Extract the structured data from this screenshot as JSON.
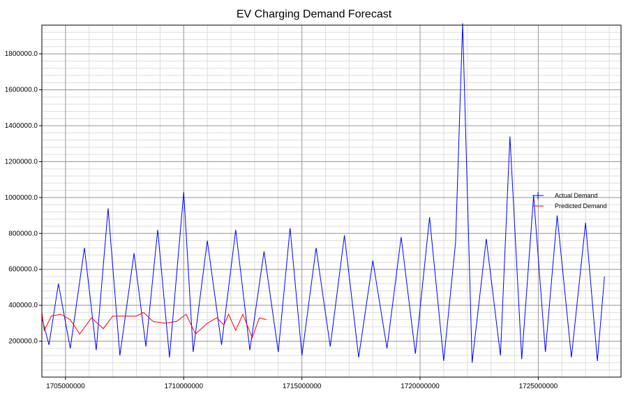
{
  "chart_data": {
    "type": "line",
    "title": "EV Charging Demand Forecast",
    "xlabel": "",
    "ylabel": "",
    "xlim": [
      1704000000,
      1728500000
    ],
    "ylim": [
      0,
      1960000
    ],
    "x_ticks": [
      1705000000,
      1710000000,
      1715000000,
      1720000000,
      1725000000
    ],
    "x_tick_labels": [
      "1705000000",
      "1710000000",
      "1715000000",
      "1720000000",
      "1725000000"
    ],
    "y_ticks": [
      200000,
      400000,
      600000,
      800000,
      1000000,
      1200000,
      1400000,
      1600000,
      1800000
    ],
    "y_tick_labels": [
      "200000.0",
      "400000.0",
      "600000.0",
      "800000.0",
      "1000000.0",
      "1200000.0",
      "1400000.0",
      "1600000.0",
      "1800000.0"
    ],
    "grid": true,
    "legend_position": "right",
    "series": [
      {
        "name": "Actual Demand",
        "color": "#0000ff",
        "x": [
          1704000000,
          1704300000,
          1704700000,
          1705200000,
          1705800000,
          1706300000,
          1706800000,
          1707300000,
          1707900000,
          1708400000,
          1708900000,
          1709400000,
          1710000000,
          1710400000,
          1711000000,
          1711600000,
          1712200000,
          1712800000,
          1713400000,
          1714000000,
          1714500000,
          1715000000,
          1715600000,
          1716200000,
          1716800000,
          1717400000,
          1718000000,
          1718600000,
          1719200000,
          1719800000,
          1720400000,
          1721000000,
          1721500000,
          1721800000,
          1722200000,
          1722800000,
          1723400000,
          1723800000,
          1724300000,
          1724800000,
          1725300000,
          1725800000,
          1726400000,
          1727000000,
          1727500000,
          1727800000
        ],
        "values": [
          330000,
          180000,
          520000,
          160000,
          720000,
          150000,
          940000,
          120000,
          690000,
          170000,
          820000,
          110000,
          1030000,
          140000,
          760000,
          180000,
          820000,
          150000,
          700000,
          140000,
          830000,
          120000,
          720000,
          170000,
          790000,
          110000,
          650000,
          160000,
          780000,
          130000,
          890000,
          90000,
          750000,
          1970000,
          80000,
          770000,
          120000,
          1340000,
          100000,
          1010000,
          140000,
          900000,
          110000,
          860000,
          90000,
          560000
        ]
      },
      {
        "name": "Predicted Demand",
        "color": "#ff0000",
        "x": [
          1704000000,
          1704100000,
          1704400000,
          1704800000,
          1705200000,
          1705600000,
          1706100000,
          1706600000,
          1707000000,
          1707500000,
          1708000000,
          1708300000,
          1708700000,
          1709200000,
          1709700000,
          1710100000,
          1710500000,
          1711000000,
          1711400000,
          1711700000,
          1711900000,
          1712200000,
          1712500000,
          1712900000,
          1713200000,
          1713500000
        ],
        "values": [
          360000,
          260000,
          340000,
          350000,
          320000,
          240000,
          330000,
          270000,
          340000,
          340000,
          340000,
          360000,
          310000,
          300000,
          310000,
          350000,
          240000,
          300000,
          330000,
          290000,
          350000,
          260000,
          350000,
          220000,
          330000,
          320000
        ]
      }
    ]
  }
}
